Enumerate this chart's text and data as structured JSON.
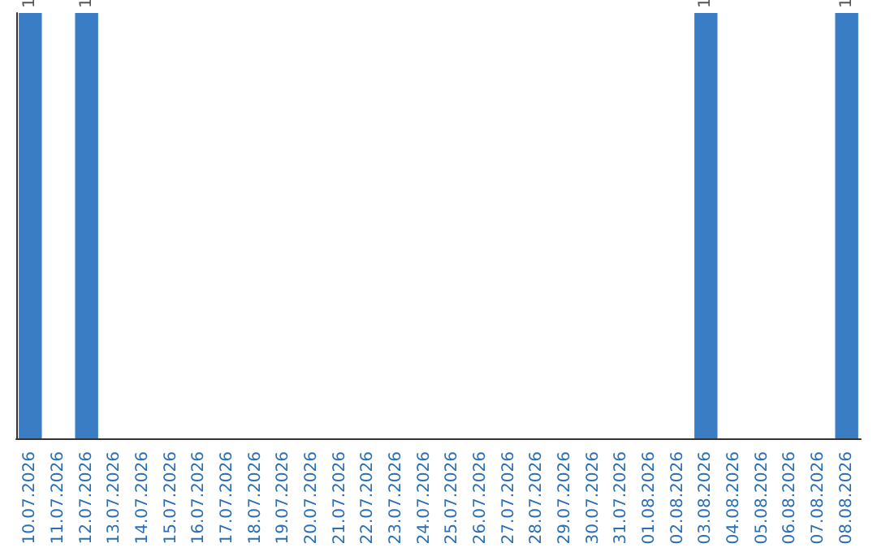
{
  "chart_data": {
    "type": "bar",
    "categories": [
      "10.07.2026",
      "11.07.2026",
      "12.07.2026",
      "13.07.2026",
      "14.07.2026",
      "15.07.2026",
      "16.07.2026",
      "17.07.2026",
      "18.07.2026",
      "19.07.2026",
      "20.07.2026",
      "21.07.2026",
      "22.07.2026",
      "23.07.2026",
      "24.07.2026",
      "25.07.2026",
      "26.07.2026",
      "27.07.2026",
      "28.07.2026",
      "29.07.2026",
      "30.07.2026",
      "31.07.2026",
      "01.08.2026",
      "02.08.2026",
      "03.08.2026",
      "04.08.2026",
      "05.08.2026",
      "06.08.2026",
      "07.08.2026",
      "08.08.2026"
    ],
    "values": [
      1,
      0,
      1,
      0,
      0,
      0,
      0,
      0,
      0,
      0,
      0,
      0,
      0,
      0,
      0,
      0,
      0,
      0,
      0,
      0,
      0,
      0,
      0,
      0,
      1,
      0,
      0,
      0,
      0,
      1
    ],
    "value_labels": [
      "1",
      null,
      "1",
      null,
      null,
      null,
      null,
      null,
      null,
      null,
      null,
      null,
      null,
      null,
      null,
      null,
      null,
      null,
      null,
      null,
      null,
      null,
      null,
      null,
      "1",
      null,
      null,
      null,
      null,
      "1"
    ],
    "color": "#3b7dc4",
    "ylim": [
      0,
      1
    ],
    "tick_labels": "x"
  }
}
